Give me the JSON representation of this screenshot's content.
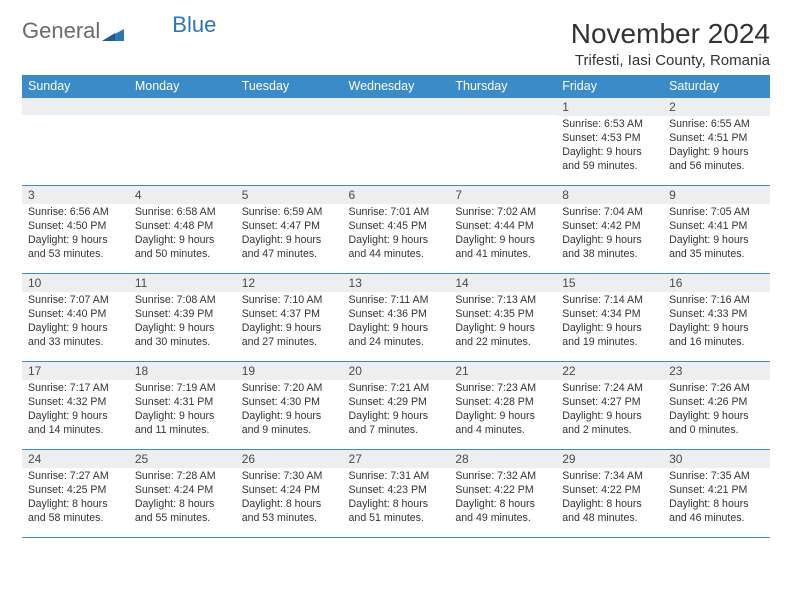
{
  "logo": {
    "general": "General",
    "blue": "Blue"
  },
  "header": {
    "month_title": "November 2024",
    "location": "Trifesti, Iasi County, Romania"
  },
  "styling": {
    "header_bg": "#3b8bc9",
    "header_text": "#ffffff",
    "daynum_bg": "#eceef0",
    "daynum_text": "#4a4a4a",
    "text_color": "#333333",
    "row_border": "#3b8bc9",
    "page_bg": "#ffffff",
    "logo_general_color": "#6b6b6b",
    "logo_blue_color": "#2e75b6",
    "month_title_fontsize": 28,
    "location_fontsize": 15,
    "weekday_fontsize": 12.5,
    "daynum_fontsize": 12,
    "daytext_fontsize": 10.6,
    "column_count": 7,
    "row_count": 5
  },
  "weekdays": [
    "Sunday",
    "Monday",
    "Tuesday",
    "Wednesday",
    "Thursday",
    "Friday",
    "Saturday"
  ],
  "weeks": [
    [
      {
        "num": "",
        "lines": []
      },
      {
        "num": "",
        "lines": []
      },
      {
        "num": "",
        "lines": []
      },
      {
        "num": "",
        "lines": []
      },
      {
        "num": "",
        "lines": []
      },
      {
        "num": "1",
        "lines": [
          "Sunrise: 6:53 AM",
          "Sunset: 4:53 PM",
          "Daylight: 9 hours",
          "and 59 minutes."
        ]
      },
      {
        "num": "2",
        "lines": [
          "Sunrise: 6:55 AM",
          "Sunset: 4:51 PM",
          "Daylight: 9 hours",
          "and 56 minutes."
        ]
      }
    ],
    [
      {
        "num": "3",
        "lines": [
          "Sunrise: 6:56 AM",
          "Sunset: 4:50 PM",
          "Daylight: 9 hours",
          "and 53 minutes."
        ]
      },
      {
        "num": "4",
        "lines": [
          "Sunrise: 6:58 AM",
          "Sunset: 4:48 PM",
          "Daylight: 9 hours",
          "and 50 minutes."
        ]
      },
      {
        "num": "5",
        "lines": [
          "Sunrise: 6:59 AM",
          "Sunset: 4:47 PM",
          "Daylight: 9 hours",
          "and 47 minutes."
        ]
      },
      {
        "num": "6",
        "lines": [
          "Sunrise: 7:01 AM",
          "Sunset: 4:45 PM",
          "Daylight: 9 hours",
          "and 44 minutes."
        ]
      },
      {
        "num": "7",
        "lines": [
          "Sunrise: 7:02 AM",
          "Sunset: 4:44 PM",
          "Daylight: 9 hours",
          "and 41 minutes."
        ]
      },
      {
        "num": "8",
        "lines": [
          "Sunrise: 7:04 AM",
          "Sunset: 4:42 PM",
          "Daylight: 9 hours",
          "and 38 minutes."
        ]
      },
      {
        "num": "9",
        "lines": [
          "Sunrise: 7:05 AM",
          "Sunset: 4:41 PM",
          "Daylight: 9 hours",
          "and 35 minutes."
        ]
      }
    ],
    [
      {
        "num": "10",
        "lines": [
          "Sunrise: 7:07 AM",
          "Sunset: 4:40 PM",
          "Daylight: 9 hours",
          "and 33 minutes."
        ]
      },
      {
        "num": "11",
        "lines": [
          "Sunrise: 7:08 AM",
          "Sunset: 4:39 PM",
          "Daylight: 9 hours",
          "and 30 minutes."
        ]
      },
      {
        "num": "12",
        "lines": [
          "Sunrise: 7:10 AM",
          "Sunset: 4:37 PM",
          "Daylight: 9 hours",
          "and 27 minutes."
        ]
      },
      {
        "num": "13",
        "lines": [
          "Sunrise: 7:11 AM",
          "Sunset: 4:36 PM",
          "Daylight: 9 hours",
          "and 24 minutes."
        ]
      },
      {
        "num": "14",
        "lines": [
          "Sunrise: 7:13 AM",
          "Sunset: 4:35 PM",
          "Daylight: 9 hours",
          "and 22 minutes."
        ]
      },
      {
        "num": "15",
        "lines": [
          "Sunrise: 7:14 AM",
          "Sunset: 4:34 PM",
          "Daylight: 9 hours",
          "and 19 minutes."
        ]
      },
      {
        "num": "16",
        "lines": [
          "Sunrise: 7:16 AM",
          "Sunset: 4:33 PM",
          "Daylight: 9 hours",
          "and 16 minutes."
        ]
      }
    ],
    [
      {
        "num": "17",
        "lines": [
          "Sunrise: 7:17 AM",
          "Sunset: 4:32 PM",
          "Daylight: 9 hours",
          "and 14 minutes."
        ]
      },
      {
        "num": "18",
        "lines": [
          "Sunrise: 7:19 AM",
          "Sunset: 4:31 PM",
          "Daylight: 9 hours",
          "and 11 minutes."
        ]
      },
      {
        "num": "19",
        "lines": [
          "Sunrise: 7:20 AM",
          "Sunset: 4:30 PM",
          "Daylight: 9 hours",
          "and 9 minutes."
        ]
      },
      {
        "num": "20",
        "lines": [
          "Sunrise: 7:21 AM",
          "Sunset: 4:29 PM",
          "Daylight: 9 hours",
          "and 7 minutes."
        ]
      },
      {
        "num": "21",
        "lines": [
          "Sunrise: 7:23 AM",
          "Sunset: 4:28 PM",
          "Daylight: 9 hours",
          "and 4 minutes."
        ]
      },
      {
        "num": "22",
        "lines": [
          "Sunrise: 7:24 AM",
          "Sunset: 4:27 PM",
          "Daylight: 9 hours",
          "and 2 minutes."
        ]
      },
      {
        "num": "23",
        "lines": [
          "Sunrise: 7:26 AM",
          "Sunset: 4:26 PM",
          "Daylight: 9 hours",
          "and 0 minutes."
        ]
      }
    ],
    [
      {
        "num": "24",
        "lines": [
          "Sunrise: 7:27 AM",
          "Sunset: 4:25 PM",
          "Daylight: 8 hours",
          "and 58 minutes."
        ]
      },
      {
        "num": "25",
        "lines": [
          "Sunrise: 7:28 AM",
          "Sunset: 4:24 PM",
          "Daylight: 8 hours",
          "and 55 minutes."
        ]
      },
      {
        "num": "26",
        "lines": [
          "Sunrise: 7:30 AM",
          "Sunset: 4:24 PM",
          "Daylight: 8 hours",
          "and 53 minutes."
        ]
      },
      {
        "num": "27",
        "lines": [
          "Sunrise: 7:31 AM",
          "Sunset: 4:23 PM",
          "Daylight: 8 hours",
          "and 51 minutes."
        ]
      },
      {
        "num": "28",
        "lines": [
          "Sunrise: 7:32 AM",
          "Sunset: 4:22 PM",
          "Daylight: 8 hours",
          "and 49 minutes."
        ]
      },
      {
        "num": "29",
        "lines": [
          "Sunrise: 7:34 AM",
          "Sunset: 4:22 PM",
          "Daylight: 8 hours",
          "and 48 minutes."
        ]
      },
      {
        "num": "30",
        "lines": [
          "Sunrise: 7:35 AM",
          "Sunset: 4:21 PM",
          "Daylight: 8 hours",
          "and 46 minutes."
        ]
      }
    ]
  ]
}
